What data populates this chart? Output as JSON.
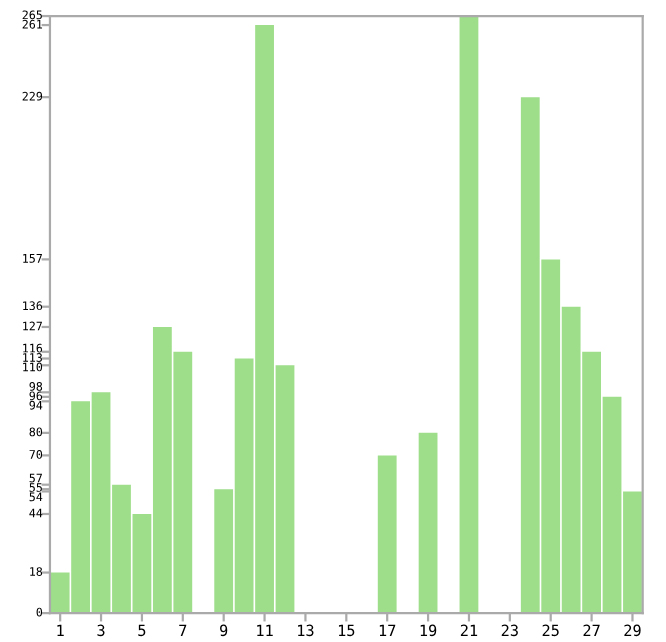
{
  "chart_data": {
    "type": "bar",
    "categories": [
      "1",
      null,
      "3",
      null,
      "5",
      null,
      "7",
      null,
      "9",
      null,
      "11",
      null,
      "13",
      null,
      "15",
      null,
      "17",
      null,
      "19",
      null,
      "21",
      null,
      "23",
      null,
      "25",
      null,
      "27",
      null,
      "29"
    ],
    "values": [
      18,
      94,
      98,
      57,
      44,
      127,
      116,
      0,
      55,
      113,
      261,
      110,
      0,
      0,
      0,
      0,
      70,
      0,
      80,
      0,
      265,
      0,
      0,
      229,
      157,
      136,
      116,
      96,
      54
    ],
    "color": "#9ede8a",
    "ylim": [
      0,
      265
    ],
    "yticks": [
      0,
      18,
      44,
      54,
      55,
      57,
      70,
      80,
      94,
      96,
      98,
      110,
      113,
      116,
      127,
      136,
      157,
      229,
      261,
      265
    ],
    "grid": false
  }
}
